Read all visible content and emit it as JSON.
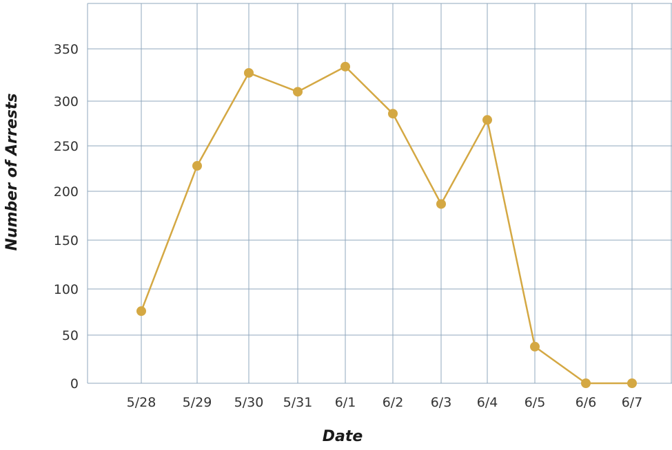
{
  "chart_data": {
    "type": "line",
    "title": "",
    "xlabel": "Date",
    "ylabel": "Number of Arrests",
    "categories": [
      "5/28",
      "5/29",
      "5/30",
      "5/31",
      "6/1",
      "6/2",
      "6/3",
      "6/4",
      "6/5",
      "6/6",
      "6/7"
    ],
    "series": [
      {
        "values": [
          76,
          228,
          327,
          309,
          333,
          286,
          187,
          279,
          38,
          0,
          0
        ]
      }
    ],
    "y_ticks": [
      {
        "label": "0",
        "value": 0
      },
      {
        "label": "50",
        "value": 50
      },
      {
        "label": "100",
        "value": 100
      },
      {
        "label": "150",
        "value": 150
      },
      {
        "label": "200",
        "value": 200
      },
      {
        "label": "250",
        "value": 250
      },
      {
        "label": "300",
        "value": 300
      },
      {
        "label": "350",
        "value": 350
      }
    ],
    "ylim": [
      0,
      395
    ],
    "grid": true,
    "legend": "none",
    "colors": {
      "line": "#d4a843",
      "grid": "#8fa7bd"
    }
  }
}
